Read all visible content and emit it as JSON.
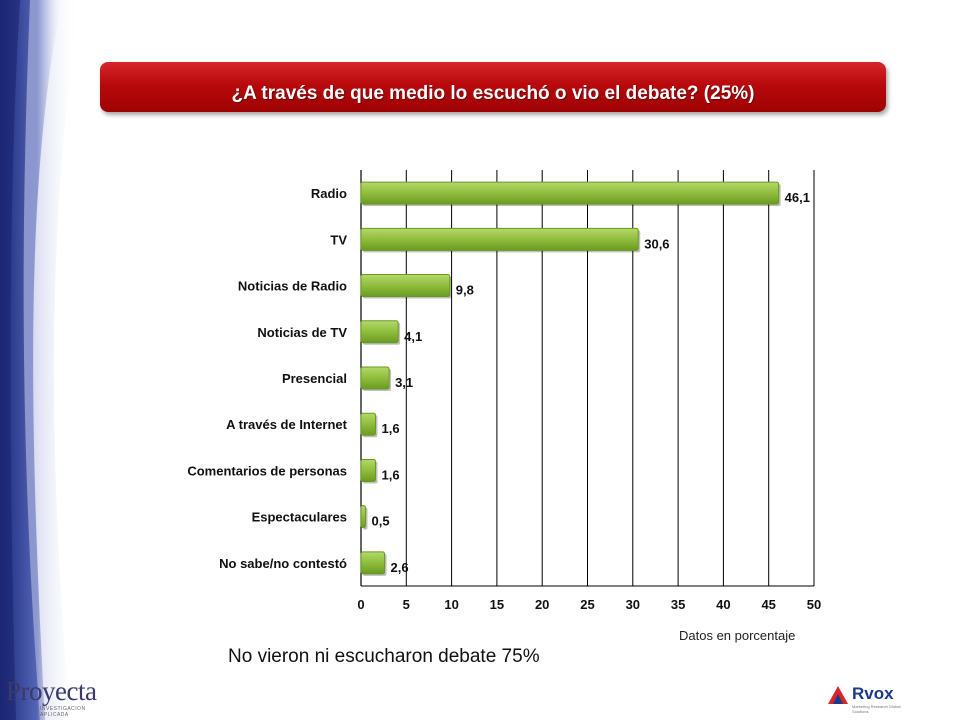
{
  "title": "¿A través de que medio lo escuchó o vio el debate? (25%)",
  "chart_data": {
    "type": "bar",
    "orientation": "horizontal",
    "categories": [
      "Radio",
      "TV",
      "Noticias de Radio",
      "Noticias de TV",
      "Presencial",
      "A través de Internet",
      "Comentarios de personas",
      "Espectaculares",
      "No sabe/no contestó"
    ],
    "value_labels": [
      "46,1",
      "30,6",
      "9,8",
      "4,1",
      "3,1",
      "1,6",
      "1,6",
      "0,5",
      "2,6"
    ],
    "values": [
      46.1,
      30.6,
      9.8,
      4.1,
      3.1,
      1.6,
      1.6,
      0.5,
      2.6
    ],
    "xlim": [
      0,
      50
    ],
    "xticks": [
      "0",
      "5",
      "10",
      "15",
      "20",
      "25",
      "30",
      "35",
      "40",
      "45",
      "50"
    ],
    "grid": true,
    "bar_color": "#8fbd3c",
    "bar_color_dark": "#6a9a22"
  },
  "notes": {
    "units": "Datos en porcentaje",
    "main": "No vieron ni escucharon debate 75%"
  },
  "logos": {
    "left": "Proyecta",
    "left_tag": "INVESTIGACION APLICADA",
    "right": "Rvox",
    "right_tag": "Marketing Research Global Solutions"
  },
  "colors": {
    "banner": "#b8090c",
    "deco": "#2a3d8f"
  }
}
